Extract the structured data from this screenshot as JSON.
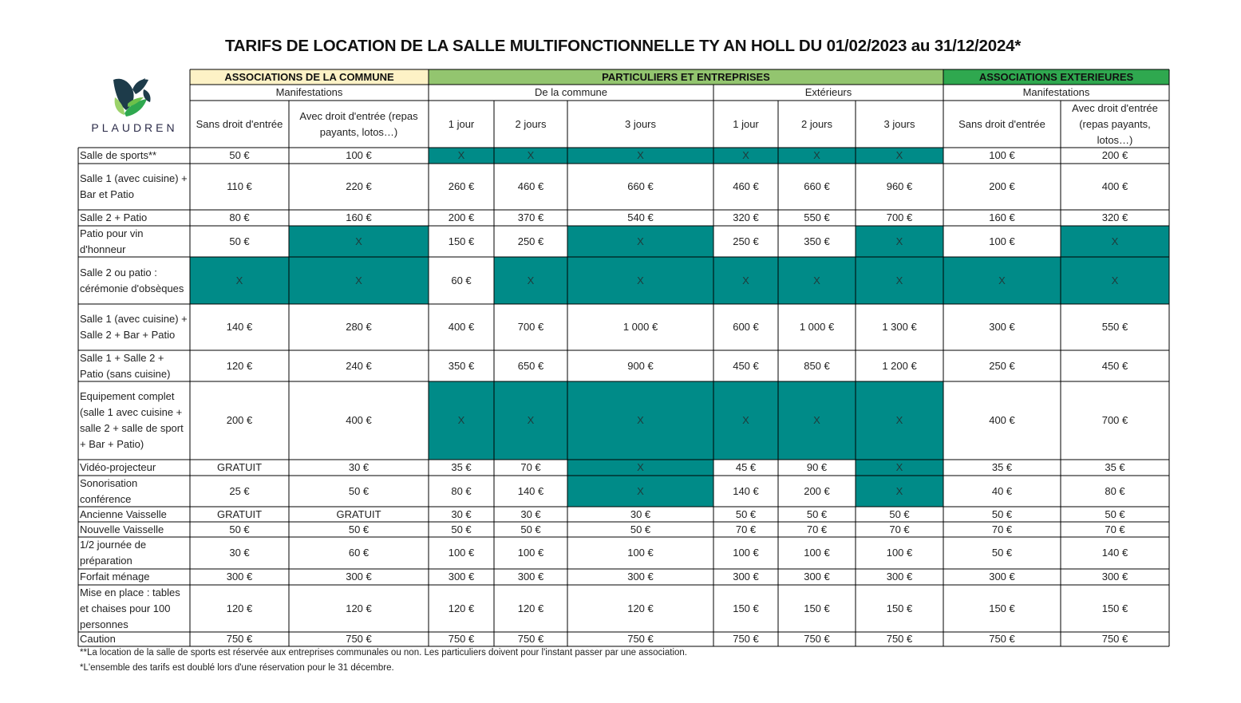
{
  "title": "TARIFS DE LOCATION DE LA SALLE MULTIFONCTIONNELLE TY AN HOLL DU 01/02/2023 au 31/12/2024*",
  "logo_text": "PLAUDREN",
  "colors": {
    "yellow": "#fdf2c6",
    "light_green": "#93c56f",
    "green": "#2fa84f",
    "teal": "#008b88"
  },
  "groups": [
    {
      "label": "ASSOCIATIONS DE LA COMMUNE",
      "sub": [
        "Manifestations"
      ]
    },
    {
      "label": "PARTICULIERS ET ENTREPRISES",
      "sub": [
        "De la commune",
        "Extérieurs"
      ]
    },
    {
      "label": "ASSOCIATIONS EXTERIEURES",
      "sub": [
        "Manifestations"
      ]
    }
  ],
  "columns": [
    "Sans droit d'entrée",
    "Avec droit d'entrée (repas payants, lotos…)",
    "1 jour",
    "2 jours",
    "3 jours",
    "1 jour",
    "2 jours",
    "3 jours",
    "Sans droit d'entrée",
    "Avec droit d'entrée (repas payants, lotos…)"
  ],
  "rows": [
    {
      "label": "Salle de sports**",
      "values": [
        "50 €",
        "100 €",
        "X",
        "X",
        "X",
        "X",
        "X",
        "X",
        "100 €",
        "200 €"
      ]
    },
    {
      "label": "Salle 1 (avec cuisine) + Bar et Patio",
      "values": [
        "110 €",
        "220 €",
        "260 €",
        "460 €",
        "660 €",
        "460 €",
        "660 €",
        "960 €",
        "200 €",
        "400 €"
      ]
    },
    {
      "label": "Salle 2 + Patio",
      "values": [
        "80 €",
        "160 €",
        "200 €",
        "370 €",
        "540 €",
        "320 €",
        "550 €",
        "700 €",
        "160 €",
        "320 €"
      ]
    },
    {
      "label": "Patio pour vin d'honneur",
      "values": [
        "50 €",
        "X",
        "150 €",
        "250 €",
        "X",
        "250 €",
        "350 €",
        "X",
        "100 €",
        "X"
      ]
    },
    {
      "label": "Salle 2 ou patio : cérémonie d'obsèques",
      "values": [
        "X",
        "X",
        "60 €",
        "X",
        "X",
        "X",
        "X",
        "X",
        "X",
        "X"
      ]
    },
    {
      "label": "Salle 1 (avec cuisine) + Salle 2 + Bar + Patio",
      "values": [
        "140 €",
        "280 €",
        "400 €",
        "700 €",
        "1 000 €",
        "600 €",
        "1 000 €",
        "1 300 €",
        "300 €",
        "550 €"
      ]
    },
    {
      "label": "Salle 1 + Salle 2 + Patio (sans cuisine)",
      "values": [
        "120 €",
        "240 €",
        "350 €",
        "650 €",
        "900 €",
        "450 €",
        "850 €",
        "1 200 €",
        "250 €",
        "450 €"
      ]
    },
    {
      "label": "Equipement complet (salle 1 avec cuisine + salle 2 + salle de sport + Bar + Patio)",
      "values": [
        "200 €",
        "400 €",
        "X",
        "X",
        "X",
        "X",
        "X",
        "X",
        "400 €",
        "700 €"
      ]
    },
    {
      "label": "Vidéo-projecteur",
      "values": [
        "GRATUIT",
        "30 €",
        "35 €",
        "70 €",
        "X",
        "45 €",
        "90 €",
        "X",
        "35 €",
        "35 €"
      ]
    },
    {
      "label": "Sonorisation conférence",
      "values": [
        "25 €",
        "50 €",
        "80 €",
        "140 €",
        "X",
        "140 €",
        "200 €",
        "X",
        "40 €",
        "80 €"
      ]
    },
    {
      "label": "Ancienne Vaisselle",
      "values": [
        "GRATUIT",
        "GRATUIT",
        "30 €",
        "30 €",
        "30 €",
        "50 €",
        "50 €",
        "50 €",
        "50 €",
        "50 €"
      ]
    },
    {
      "label": "Nouvelle Vaisselle",
      "values": [
        "50 €",
        "50 €",
        "50 €",
        "50 €",
        "50 €",
        "70 €",
        "70 €",
        "70 €",
        "70 €",
        "70 €"
      ]
    },
    {
      "label": "1/2 journée de préparation",
      "values": [
        "30 €",
        "60 €",
        "100 €",
        "100 €",
        "100 €",
        "100 €",
        "100 €",
        "100 €",
        "50 €",
        "140 €"
      ]
    },
    {
      "label": "Forfait ménage",
      "values": [
        "300 €",
        "300 €",
        "300 €",
        "300 €",
        "300 €",
        "300 €",
        "300 €",
        "300 €",
        "300 €",
        "300 €"
      ]
    },
    {
      "label": "Mise en place : tables et chaises pour 100 personnes",
      "values": [
        "120 €",
        "120 €",
        "120 €",
        "120 €",
        "120 €",
        "150 €",
        "150 €",
        "150 €",
        "150 €",
        "150 €"
      ]
    },
    {
      "label": "Caution",
      "values": [
        "750 €",
        "750 €",
        "750 €",
        "750 €",
        "750 €",
        "750 €",
        "750 €",
        "750 €",
        "750 €",
        "750 €"
      ]
    }
  ],
  "footnotes": [
    "**La location de la salle de sports est réservée aux entreprises communales ou non. Les particuliers doivent pour l'instant passer par une association.",
    "*L'ensemble des tarifs est doublé lors d'une réservation pour le 31 décembre."
  ]
}
